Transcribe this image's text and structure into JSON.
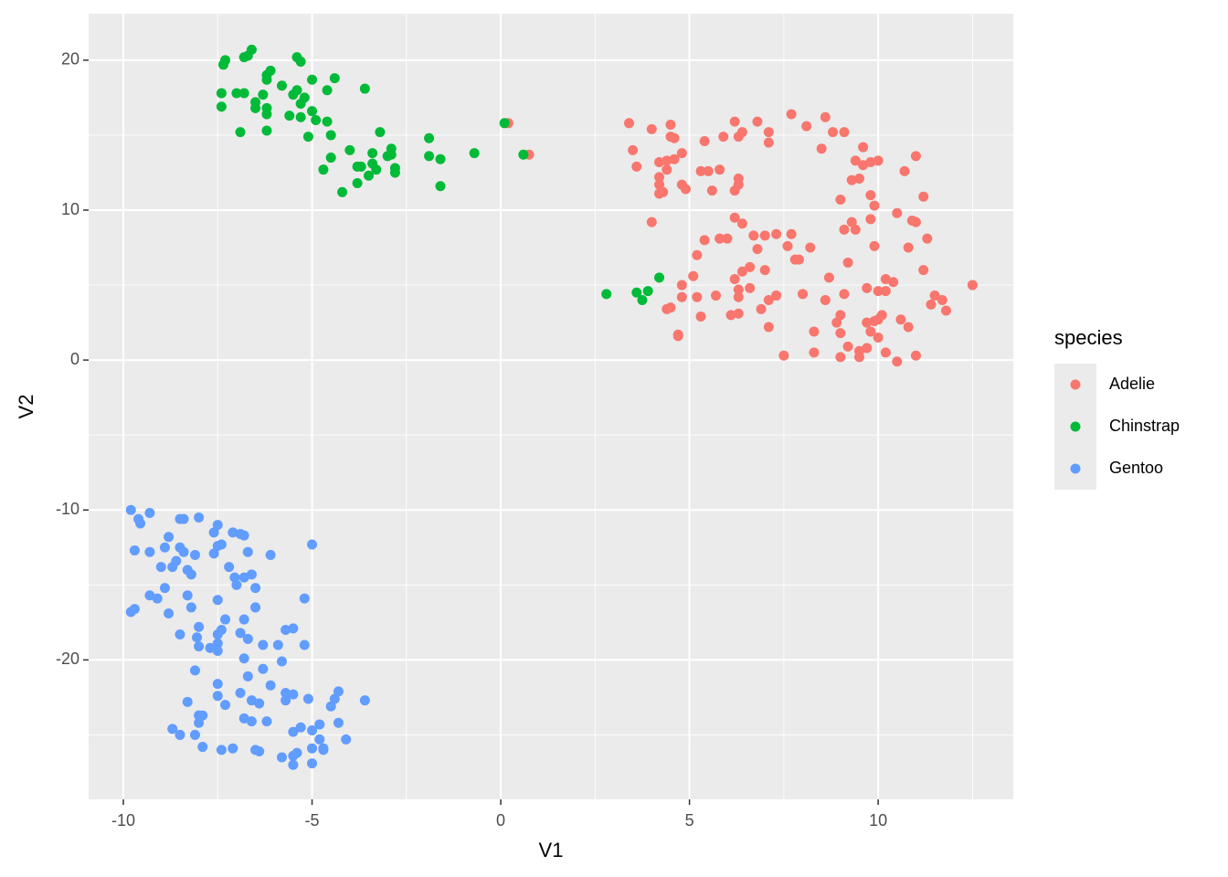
{
  "chart_data": {
    "type": "scatter",
    "x_label": "V1",
    "y_label": "V2",
    "legend_title": "species",
    "legend_position": "right",
    "xlim": [
      -10.92,
      13.58
    ],
    "ylim": [
      -29.3,
      23.1
    ],
    "xticks": [
      -10,
      -5,
      0,
      5,
      10
    ],
    "yticks": [
      -20,
      -10,
      0,
      10,
      20
    ],
    "x_minor_grid": [
      -7.5,
      -2.5,
      2.5,
      7.5,
      12.5
    ],
    "y_minor_grid": [
      -25,
      -15,
      -5,
      5,
      15
    ],
    "grid": true,
    "series": [
      {
        "name": "Adelie",
        "color": "#f8766d",
        "x": [
          0.2,
          0.75,
          3.4,
          3.5,
          3.6,
          4.0,
          4.5,
          4.5,
          4.6,
          4.2,
          4.4,
          4.6,
          4.8,
          4.4,
          4.2,
          4.2,
          4.2,
          4.3,
          4.8,
          4.9,
          5.3,
          5.5,
          5.4,
          5.8,
          5.6,
          5.9,
          6.2,
          6.4,
          6.3,
          6.8,
          7.1,
          7.1,
          6.3,
          6.3,
          6.2,
          7.7,
          8.1,
          8.6,
          8.8,
          9.1,
          8.5,
          9.6,
          9.8,
          10.0,
          9.6,
          9.4,
          9.3,
          9.5,
          10.7,
          11.0,
          9.0,
          9.8,
          9.9,
          10.5,
          11.2,
          9.3,
          9.1,
          9.4,
          9.8,
          9.9,
          10.9,
          11.0,
          11.3,
          4.0,
          6.2,
          6.4,
          5.8,
          6.0,
          5.4,
          6.7,
          7.0,
          7.3,
          7.7,
          7.6,
          7.9,
          7.8,
          6.8,
          6.6,
          6.4,
          6.2,
          5.2,
          5.1,
          4.8,
          5.7,
          6.3,
          6.3,
          6.6,
          7.1,
          7.3,
          7.0,
          8.2,
          8.6,
          8.7,
          9.1,
          9.2,
          9.7,
          10.0,
          10.2,
          10.2,
          10.4,
          10.8,
          11.2,
          11.4,
          11.5,
          11.7,
          11.8,
          12.5,
          4.4,
          4.5,
          4.8,
          5.3,
          5.2,
          6.1,
          6.3,
          6.9,
          7.1,
          8.0,
          8.3,
          8.9,
          9.0,
          9.0,
          9.2,
          9.5,
          9.7,
          9.5,
          9.7,
          9.9,
          9.8,
          10.0,
          10.1,
          10.2,
          10.6,
          10.8,
          10.5,
          11.0,
          9.0,
          8.3,
          7.5,
          4.7,
          4.7,
          10.0
        ],
        "values": [
          15.8,
          13.7,
          15.8,
          14.0,
          12.9,
          15.4,
          15.7,
          14.9,
          14.8,
          13.2,
          13.3,
          13.4,
          13.8,
          12.7,
          12.2,
          11.7,
          11.1,
          11.2,
          11.7,
          11.4,
          12.6,
          12.6,
          14.6,
          12.7,
          11.3,
          14.9,
          15.9,
          15.2,
          14.9,
          15.9,
          15.2,
          14.5,
          12.1,
          11.7,
          11.3,
          16.4,
          15.6,
          16.2,
          15.2,
          15.2,
          14.1,
          14.2,
          13.2,
          13.3,
          13.0,
          13.3,
          12.0,
          12.1,
          12.6,
          13.6,
          10.7,
          11.0,
          10.3,
          9.8,
          10.9,
          9.2,
          8.7,
          8.7,
          9.4,
          7.6,
          9.3,
          9.2,
          8.1,
          9.2,
          9.5,
          9.1,
          8.1,
          8.1,
          8.0,
          8.3,
          8.3,
          8.4,
          8.4,
          7.6,
          6.7,
          6.7,
          7.4,
          6.2,
          5.9,
          5.4,
          7.0,
          5.6,
          5.0,
          4.3,
          4.7,
          4.2,
          4.8,
          4.0,
          4.3,
          6.0,
          7.5,
          4.0,
          5.5,
          4.4,
          6.5,
          4.8,
          4.6,
          5.4,
          4.6,
          5.2,
          7.5,
          6.0,
          3.7,
          4.3,
          4.0,
          3.3,
          5.0,
          3.4,
          3.5,
          4.2,
          2.9,
          4.2,
          3.0,
          3.1,
          3.4,
          2.2,
          4.4,
          1.9,
          2.5,
          3.0,
          1.8,
          0.9,
          0.6,
          0.8,
          0.2,
          2.5,
          2.6,
          1.9,
          1.5,
          3.0,
          0.5,
          2.7,
          2.2,
          -0.1,
          0.3,
          0.2,
          0.5,
          0.3,
          1.7,
          1.6,
          2.7
        ]
      },
      {
        "name": "Chinstrap",
        "color": "#00ba38",
        "x": [
          -6.6,
          -7.3,
          -7.35,
          -6.7,
          -6.8,
          -5.4,
          -5.3,
          -6.1,
          -6.2,
          -6.2,
          -5.0,
          -4.4,
          -7.4,
          -7.0,
          -6.8,
          -6.5,
          -6.3,
          -5.8,
          -5.5,
          -5.4,
          -5.2,
          -4.6,
          -3.6,
          -7.4,
          -6.5,
          -6.2,
          -6.2,
          -5.6,
          -5.3,
          -5.3,
          -5.0,
          -4.9,
          -4.6,
          -6.9,
          -6.2,
          -5.1,
          -4.5,
          -3.2,
          -4.0,
          -3.4,
          -2.9,
          -2.9,
          -1.9,
          -4.5,
          -4.7,
          -3.8,
          -3.7,
          -3.4,
          -3.3,
          -3.5,
          -2.8,
          -2.8,
          -3.8,
          -4.2,
          -1.9,
          -1.6,
          -1.6,
          -0.7,
          0.1,
          0.6,
          2.8,
          3.6,
          3.9,
          3.75,
          4.2,
          -3.0
        ],
        "values": [
          20.7,
          20.0,
          19.7,
          20.3,
          20.2,
          20.2,
          19.9,
          19.3,
          19.0,
          18.7,
          18.7,
          18.8,
          17.8,
          17.8,
          17.8,
          17.2,
          17.7,
          18.3,
          17.7,
          18.0,
          17.5,
          18.0,
          18.1,
          16.9,
          16.8,
          16.8,
          16.4,
          16.3,
          17.1,
          16.2,
          16.6,
          16.0,
          15.9,
          15.2,
          15.3,
          14.9,
          15.0,
          15.2,
          14.0,
          13.8,
          14.1,
          13.7,
          14.8,
          13.5,
          12.7,
          12.9,
          12.9,
          13.1,
          12.7,
          12.3,
          12.8,
          12.5,
          11.8,
          11.2,
          13.6,
          13.4,
          11.6,
          13.8,
          15.8,
          13.7,
          4.4,
          4.5,
          4.6,
          4.0,
          5.5,
          13.6
        ]
      },
      {
        "name": "Gentoo",
        "color": "#619cff",
        "x": [
          -9.8,
          -9.6,
          -9.55,
          -9.3,
          -8.5,
          -8.4,
          -8.0,
          -7.6,
          -7.5,
          -7.1,
          -6.9,
          -6.8,
          -8.8,
          -8.5,
          -8.9,
          -9.7,
          -9.3,
          -8.4,
          -8.1,
          -7.5,
          -7.4,
          -7.6,
          -6.7,
          -6.1,
          -5.0,
          -8.6,
          -8.7,
          -9.0,
          -8.3,
          -8.2,
          -7.2,
          -7.05,
          -6.8,
          -6.6,
          -7.0,
          -6.5,
          -8.9,
          -9.3,
          -9.1,
          -8.3,
          -7.5,
          -8.2,
          -6.5,
          -5.2,
          -9.8,
          -9.7,
          -8.8,
          -7.3,
          -6.8,
          -7.4,
          -8.0,
          -8.5,
          -8.05,
          -7.5,
          -6.9,
          -6.7,
          -5.7,
          -5.5,
          -7.5,
          -8.0,
          -7.7,
          -7.5,
          -6.3,
          -5.9,
          -5.2,
          -6.8,
          -5.8,
          -8.1,
          -6.3,
          -6.7,
          -7.5,
          -6.1,
          -7.5,
          -6.9,
          -5.7,
          -5.5,
          -4.3,
          -8.3,
          -7.3,
          -6.6,
          -6.4,
          -5.7,
          -5.1,
          -4.5,
          -4.4,
          -3.6,
          -8.0,
          -8.0,
          -7.9,
          -6.8,
          -6.6,
          -6.2,
          -5.5,
          -5.3,
          -5.0,
          -4.8,
          -4.3,
          -4.1,
          -8.7,
          -8.5,
          -8.1,
          -7.9,
          -7.4,
          -7.1,
          -6.5,
          -6.4,
          -5.8,
          -5.5,
          -5.4,
          -5.0,
          -4.8,
          -4.7,
          -4.7,
          -5.0,
          -5.5
        ],
        "values": [
          -10.0,
          -10.6,
          -10.9,
          -10.2,
          -10.6,
          -10.6,
          -10.5,
          -11.5,
          -11.0,
          -11.5,
          -11.6,
          -11.7,
          -11.8,
          -12.5,
          -12.5,
          -12.7,
          -12.8,
          -12.8,
          -13.0,
          -12.4,
          -12.3,
          -12.9,
          -12.8,
          -13.0,
          -12.3,
          -13.4,
          -13.8,
          -13.8,
          -14.0,
          -14.3,
          -13.8,
          -14.5,
          -14.5,
          -14.3,
          -15.0,
          -15.2,
          -15.2,
          -15.7,
          -15.9,
          -15.7,
          -16.0,
          -16.5,
          -16.5,
          -15.9,
          -16.8,
          -16.6,
          -16.9,
          -17.3,
          -17.3,
          -18.0,
          -17.8,
          -18.3,
          -18.5,
          -18.3,
          -18.2,
          -18.6,
          -18.0,
          -17.9,
          -18.9,
          -19.1,
          -19.2,
          -19.4,
          -19.0,
          -19.0,
          -19.0,
          -19.9,
          -20.1,
          -20.7,
          -20.6,
          -21.1,
          -21.6,
          -21.7,
          -22.4,
          -22.2,
          -22.2,
          -22.3,
          -22.1,
          -22.8,
          -23.0,
          -22.7,
          -22.9,
          -22.7,
          -22.6,
          -23.1,
          -22.6,
          -22.7,
          -23.7,
          -24.2,
          -23.7,
          -23.9,
          -24.1,
          -24.1,
          -24.8,
          -24.5,
          -24.7,
          -24.3,
          -24.2,
          -25.3,
          -24.6,
          -25.0,
          -25.0,
          -25.8,
          -26.0,
          -25.9,
          -26.0,
          -26.1,
          -26.5,
          -26.4,
          -26.2,
          -25.9,
          -25.3,
          -25.9,
          -26.0,
          -26.9,
          -27.0
        ]
      }
    ]
  }
}
